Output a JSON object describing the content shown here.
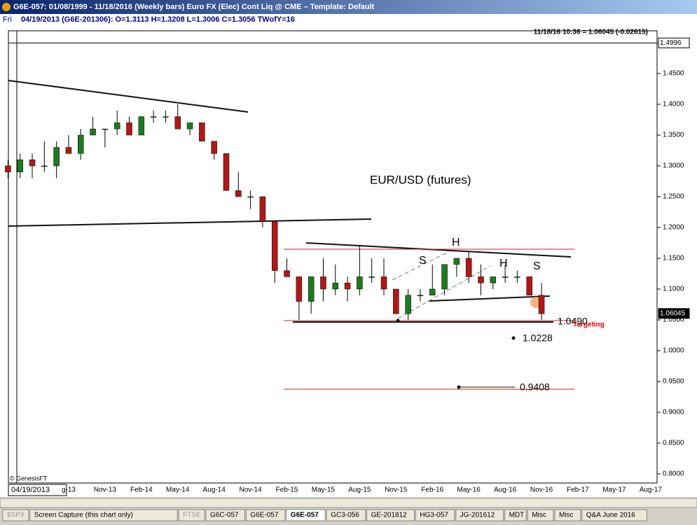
{
  "header": {
    "title": "G6E-057:  01/08/1999 - 11/18/2016  (Weekly bars)   Euro FX (Elec) Cont Liq @ CME  –  Template: Default",
    "info_day": "Fri",
    "info": "04/19/2013 (G6E-201306):  O=1.3113  H=1.3208  L=1.3006  C=1.3056  TWofY=16",
    "quote": "11/18/16 10:36 = 1.06045 (-0.02615)"
  },
  "chart_data": {
    "type": "candlestick",
    "categories": [
      null,
      null,
      null,
      null,
      null,
      "g-13",
      null,
      null,
      "Nov-13",
      null,
      null,
      "Feb-14",
      null,
      null,
      "May-14",
      null,
      null,
      "Aug-14",
      null,
      null,
      "Nov-14",
      null,
      null,
      "Feb-15",
      null,
      null,
      "May-15",
      null,
      null,
      "Aug-15",
      null,
      null,
      "Nov-15",
      null,
      null,
      "Feb-16",
      null,
      null,
      "May-16",
      null,
      null,
      "Aug-16",
      null,
      null,
      "Nov-16",
      null,
      null,
      "Feb-17",
      null,
      null,
      "May-17",
      null,
      null,
      "Aug-17"
    ],
    "open": [
      1.3,
      1.29,
      1.31,
      1.3,
      1.3,
      1.33,
      1.32,
      1.35,
      1.36,
      1.36,
      1.37,
      1.35,
      1.38,
      1.38,
      1.38,
      1.36,
      1.37,
      1.34,
      1.32,
      1.26,
      1.25,
      1.25,
      1.21,
      1.13,
      1.12,
      1.08,
      1.12,
      1.1,
      1.11,
      1.1,
      1.12,
      1.12,
      1.1,
      1.06,
      1.09,
      1.09,
      1.1,
      1.14,
      1.15,
      1.12,
      1.11,
      1.12,
      1.12,
      1.12,
      1.09,
      null,
      null,
      null,
      null,
      null,
      null,
      null,
      null,
      null
    ],
    "high": [
      1.31,
      1.32,
      1.32,
      1.34,
      1.34,
      1.35,
      1.36,
      1.38,
      1.36,
      1.39,
      1.38,
      1.38,
      1.39,
      1.39,
      1.4,
      1.37,
      1.37,
      1.34,
      1.32,
      1.29,
      1.26,
      1.25,
      1.21,
      1.15,
      1.12,
      1.12,
      1.15,
      1.14,
      1.12,
      1.17,
      1.15,
      1.15,
      1.1,
      1.1,
      1.1,
      1.14,
      1.14,
      1.15,
      1.16,
      1.14,
      1.12,
      1.14,
      1.13,
      1.12,
      1.11,
      null,
      null,
      null,
      null,
      null,
      null,
      null,
      null,
      null
    ],
    "low": [
      1.28,
      1.28,
      1.28,
      1.29,
      1.28,
      1.32,
      1.31,
      1.35,
      1.33,
      1.35,
      1.35,
      1.35,
      1.37,
      1.37,
      1.36,
      1.35,
      1.34,
      1.31,
      1.26,
      1.25,
      1.23,
      1.2,
      1.11,
      1.12,
      1.05,
      1.06,
      1.08,
      1.09,
      1.08,
      1.09,
      1.11,
      1.09,
      1.06,
      1.05,
      1.08,
      1.09,
      1.09,
      1.12,
      1.11,
      1.09,
      1.1,
      1.11,
      1.11,
      1.09,
      1.05,
      null,
      null,
      null,
      null,
      null,
      null,
      null,
      null,
      null
    ],
    "close": [
      1.29,
      1.31,
      1.3,
      1.3,
      1.33,
      1.32,
      1.35,
      1.36,
      1.36,
      1.37,
      1.35,
      1.38,
      1.38,
      1.38,
      1.36,
      1.37,
      1.34,
      1.32,
      1.26,
      1.25,
      1.25,
      1.21,
      1.13,
      1.12,
      1.08,
      1.12,
      1.1,
      1.11,
      1.1,
      1.12,
      1.12,
      1.1,
      1.06,
      1.09,
      1.09,
      1.1,
      1.14,
      1.15,
      1.12,
      1.11,
      1.12,
      1.12,
      1.12,
      1.09,
      1.06,
      null,
      null,
      null,
      null,
      null,
      null,
      null,
      null,
      null
    ],
    "up_color": "#1f7a1f",
    "down_color": "#b01818",
    "ylim": [
      0.7852,
      1.5193
    ],
    "yticks": [
      {
        "value": 0.8,
        "label": "0.8000"
      },
      {
        "value": 0.85,
        "label": "0.8500"
      },
      {
        "value": 0.9,
        "label": "0.9000"
      },
      {
        "value": 0.95,
        "label": "0.9500"
      },
      {
        "value": 1.0,
        "label": "1.0000"
      },
      {
        "value": 1.05,
        "label": "1.0500"
      },
      {
        "value": 1.1,
        "label": "1.1000"
      },
      {
        "value": 1.15,
        "label": "1.1500"
      },
      {
        "value": 1.2,
        "label": "1.2000"
      },
      {
        "value": 1.25,
        "label": "1.2500"
      },
      {
        "value": 1.3,
        "label": "1.3000"
      },
      {
        "value": 1.35,
        "label": "1.3500"
      },
      {
        "value": 1.4,
        "label": "1.4000"
      },
      {
        "value": 1.45,
        "label": "1.4500"
      }
    ],
    "price_markers": [
      1.4996,
      1.06045
    ],
    "cursor_date": "04/19/2013",
    "annotations": [
      "EUR/USD (futures)",
      "S",
      "H",
      "H",
      "S",
      "1.0490",
      "Targeting",
      "1.0228",
      "0.9408"
    ],
    "credit": "© GenesisFT"
  },
  "tabs": [
    "$SPX",
    "Screen Capture (this chart only)",
    "FTSE",
    "G6C-057",
    "G6E-057",
    "G6E-057",
    "GC3-056",
    "GE-201812",
    "HG3-057",
    "JG-201612",
    "MDT",
    "Misc",
    "Misc",
    "Q&A June 2016"
  ]
}
